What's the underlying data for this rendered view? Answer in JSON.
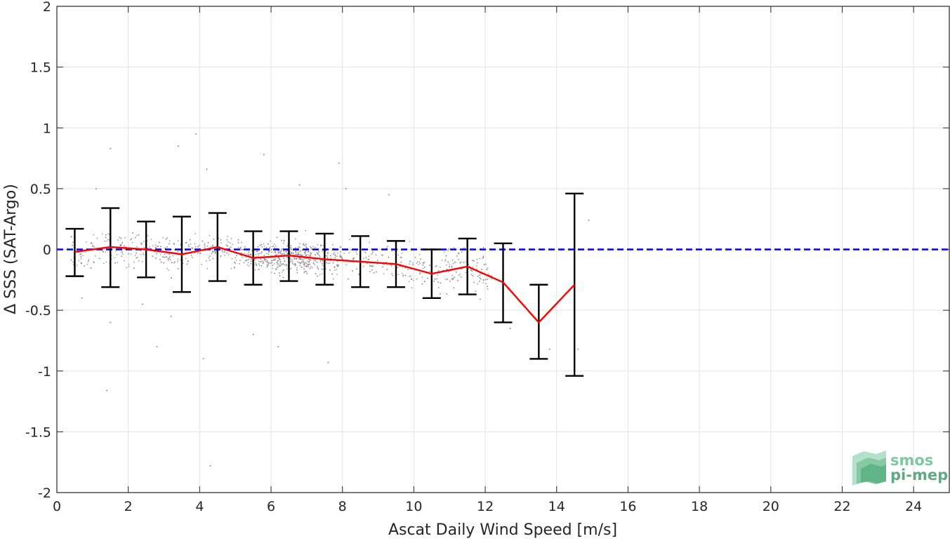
{
  "chart_data": {
    "type": "scatter",
    "title": "",
    "xlabel": "Ascat Daily Wind Speed [m/s]",
    "ylabel": "Δ SSS (SAT-Argo)",
    "xlim": [
      0,
      25
    ],
    "ylim": [
      -2,
      2
    ],
    "x_ticks": [
      0,
      2,
      4,
      6,
      8,
      10,
      12,
      14,
      16,
      18,
      20,
      22,
      24
    ],
    "x_tick_labels": [
      "0",
      "2",
      "4",
      "6",
      "8",
      "10",
      "12",
      "14",
      "16",
      "18",
      "20",
      "22",
      "24"
    ],
    "y_ticks": [
      -2,
      -1.5,
      -1,
      -0.5,
      0,
      0.5,
      1,
      1.5,
      2
    ],
    "y_tick_labels": [
      "-2",
      "-1.5",
      "-1",
      "-0.5",
      "0",
      "0.5",
      "1",
      "1.5",
      "2"
    ],
    "grid": true,
    "reference_line": {
      "y": 0,
      "style": "dashed",
      "color": "#0000ee"
    },
    "mean_series": {
      "color": "#ff0000",
      "x": [
        0.5,
        1.5,
        2.5,
        3.5,
        4.5,
        5.5,
        6.5,
        7.5,
        8.5,
        9.5,
        10.5,
        11.5,
        12.5,
        13.5,
        14.5
      ],
      "y": [
        -0.02,
        0.02,
        0.0,
        -0.04,
        0.02,
        -0.07,
        -0.05,
        -0.08,
        -0.1,
        -0.12,
        -0.2,
        -0.14,
        -0.27,
        -0.6,
        -0.29
      ]
    },
    "error_bars": {
      "color": "#000000",
      "x": [
        0.5,
        1.5,
        2.5,
        3.5,
        4.5,
        5.5,
        6.5,
        7.5,
        8.5,
        9.5,
        10.5,
        11.5,
        12.5,
        13.5,
        14.5
      ],
      "lower": [
        -0.22,
        -0.31,
        -0.23,
        -0.35,
        -0.26,
        -0.29,
        -0.26,
        -0.29,
        -0.31,
        -0.31,
        -0.4,
        -0.37,
        -0.6,
        -0.9,
        -1.04
      ],
      "upper": [
        0.17,
        0.34,
        0.23,
        0.27,
        0.3,
        0.15,
        0.15,
        0.13,
        0.11,
        0.07,
        0.0,
        0.09,
        0.05,
        -0.29,
        0.46
      ]
    },
    "scatter": {
      "color": "#8c8c8c",
      "x": [
        1.1,
        1.5,
        1.4,
        3.4,
        3.9,
        4.2,
        4.1,
        5.8,
        7.9,
        8.1,
        9.3,
        5.5,
        6.2,
        1.5,
        4.3,
        13.8,
        14.6,
        14.9,
        7.6,
        2.8,
        3.2,
        6.8,
        0.7,
        2.4,
        12.7
      ],
      "y": [
        0.5,
        0.83,
        -1.16,
        0.85,
        0.95,
        0.66,
        -0.9,
        0.78,
        0.71,
        0.5,
        0.45,
        -0.7,
        -0.8,
        -0.6,
        -1.78,
        -0.82,
        -0.82,
        0.24,
        -0.93,
        -0.8,
        -0.55,
        0.53,
        -0.4,
        -0.45,
        -0.65
      ],
      "cloud_density": 1500
    },
    "logo": {
      "line1": "smos",
      "line2": "pi-mep"
    }
  }
}
